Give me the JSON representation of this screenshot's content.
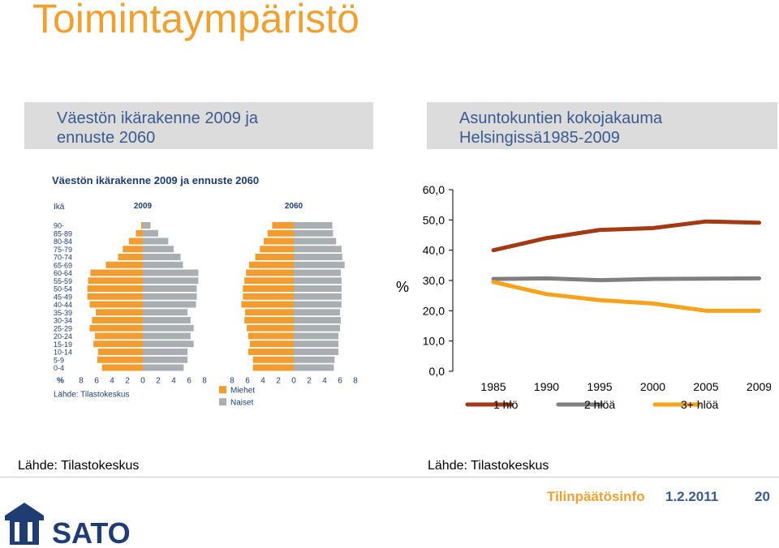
{
  "slide": {
    "title": "Toimintaympäristö",
    "left_panel_title": [
      "Väestön ikärakenne 2009 ja",
      "ennuste 2060"
    ],
    "right_panel_title": [
      "Asuntokuntien kokojakauma",
      "Helsingissä1985-2009"
    ],
    "left_source": "Lähde: Tilastokeskus",
    "right_source": "Lähde: Tilastokeskus",
    "footer": {
      "label": "Tilinpäätösinfo",
      "date": "1.2.2011",
      "page": "20"
    },
    "logo_text": "SATO"
  },
  "colors": {
    "accent": "#f0a030",
    "brand": "#3a5a90",
    "men": "#f29b2e",
    "women": "#a9aeb3"
  },
  "chart_data": [
    {
      "type": "bar",
      "subtype": "population-pyramid",
      "title": "Väestön ikärakenne 2009 ja ennuste 2060",
      "ylabel": "Ikä",
      "xlabel": "%",
      "panels": [
        "2009",
        "2060"
      ],
      "categories": [
        "90-",
        "85-89",
        "80-84",
        "75-79",
        "70-74",
        "65-69",
        "60-64",
        "55-59",
        "50-54",
        "45-49",
        "40-44",
        "35-39",
        "30-34",
        "25-29",
        "20-24",
        "15-19",
        "10-14",
        "5-9",
        "0-4"
      ],
      "tick_labels": [
        "8",
        "6",
        "4",
        "2",
        "0",
        "2",
        "4",
        "6",
        "8"
      ],
      "xlim": [
        -8,
        8
      ],
      "series": [
        {
          "name": "Miehet 2009",
          "panel": "2009",
          "side": "left",
          "values": [
            0.2,
            0.9,
            1.8,
            2.6,
            3.2,
            4.8,
            6.8,
            7.1,
            7.2,
            7.2,
            6.9,
            6.1,
            6.6,
            6.9,
            6.2,
            6.4,
            5.8,
            5.9,
            5.3
          ]
        },
        {
          "name": "Naiset 2009",
          "panel": "2009",
          "side": "right",
          "values": [
            1.0,
            2.0,
            3.3,
            4.0,
            4.9,
            5.2,
            7.2,
            7.2,
            7.0,
            7.0,
            6.9,
            5.8,
            6.2,
            6.6,
            6.2,
            6.6,
            5.8,
            5.8,
            5.3
          ]
        },
        {
          "name": "Miehet 2060",
          "panel": "2060",
          "side": "left",
          "values": [
            2.8,
            3.4,
            3.9,
            4.4,
            5.0,
            5.8,
            6.2,
            6.4,
            6.6,
            6.6,
            6.8,
            6.3,
            6.4,
            6.1,
            5.9,
            5.7,
            5.9,
            5.3,
            5.3
          ]
        },
        {
          "name": "Naiset 2060",
          "panel": "2060",
          "side": "right",
          "values": [
            5.0,
            5.1,
            5.5,
            6.2,
            6.3,
            6.6,
            6.1,
            6.2,
            6.2,
            6.2,
            6.2,
            6.0,
            6.1,
            6.0,
            5.8,
            5.8,
            5.8,
            5.3,
            5.2
          ]
        }
      ],
      "legend": [
        "Miehet",
        "Naiset"
      ],
      "source": "Lähde: Tilastokeskus"
    },
    {
      "type": "line",
      "title": "Asuntokuntien kokojakauma Helsingissä1985-2009",
      "ylabel": "%",
      "x": [
        "1985",
        "1990",
        "1995",
        "2000",
        "2005",
        "2009"
      ],
      "ylim": [
        0,
        60
      ],
      "ytick_labels": [
        "0,0",
        "10,0",
        "20,0",
        "30,0",
        "40,0",
        "50,0",
        "60,0"
      ],
      "series": [
        {
          "name": "1 hlö",
          "values": [
            40.0,
            44.0,
            46.7,
            47.3,
            49.5,
            49.1
          ]
        },
        {
          "name": "2 hlöä",
          "values": [
            30.5,
            30.7,
            30.1,
            30.5,
            30.6,
            30.7
          ]
        },
        {
          "name": "3+ hlöä",
          "values": [
            29.5,
            25.5,
            23.5,
            22.4,
            20.0,
            20.0
          ]
        }
      ],
      "legend_position": "bottom"
    }
  ]
}
